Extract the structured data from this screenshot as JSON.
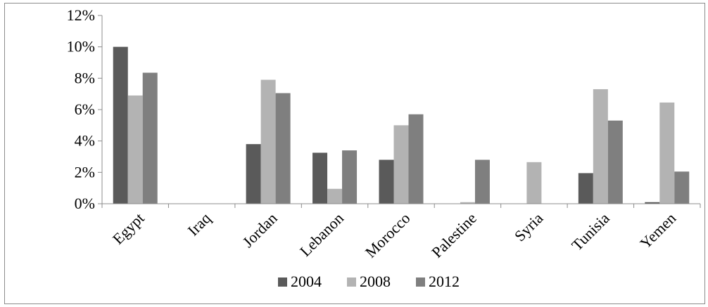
{
  "chart_data": {
    "type": "bar",
    "categories": [
      "Egypt",
      "Iraq",
      "Jordan",
      "Lebanon",
      "Morocco",
      "Palestine",
      "Syria",
      "Tunisia",
      "Yemen"
    ],
    "series": [
      {
        "name": "2004",
        "color": "#5a5a5a",
        "values": [
          0.1,
          0,
          0.038,
          0.0325,
          0.028,
          0,
          0,
          0.0195,
          0.001
        ]
      },
      {
        "name": "2008",
        "color": "#b3b3b3",
        "values": [
          0.069,
          0,
          0.079,
          0.0095,
          0.05,
          0.001,
          0.0265,
          0.073,
          0.0645
        ]
      },
      {
        "name": "2012",
        "color": "#7f7f7f",
        "values": [
          0.0835,
          0,
          0.0705,
          0.034,
          0.057,
          0.028,
          0,
          0.053,
          0.0205
        ]
      }
    ],
    "ylim": [
      0,
      0.12
    ],
    "yticks": [
      "0%",
      "2%",
      "4%",
      "6%",
      "8%",
      "10%",
      "12%"
    ],
    "ytick_values": [
      0,
      0.02,
      0.04,
      0.06,
      0.08,
      0.1,
      0.12
    ],
    "title": "",
    "xlabel": "",
    "ylabel": "",
    "grid": false,
    "legend_position": "bottom"
  }
}
